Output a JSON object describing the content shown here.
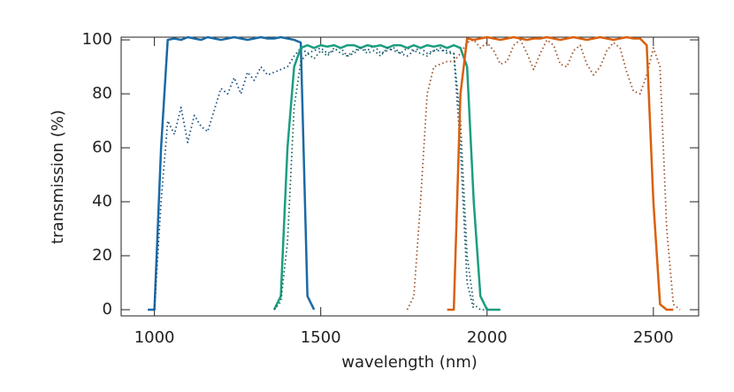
{
  "chart_data": {
    "type": "line",
    "xlabel": "wavelength (nm)",
    "ylabel": "transmission (%)",
    "xlim": [
      900,
      2636
    ],
    "ylim": [
      -2.3,
      101
    ],
    "xticks": [
      1000,
      1500,
      2000,
      2500
    ],
    "yticks": [
      0,
      20,
      40,
      60,
      80,
      100
    ],
    "x": [
      960,
      980,
      1000,
      1020,
      1040,
      1060,
      1080,
      1100,
      1120,
      1140,
      1160,
      1180,
      1200,
      1220,
      1240,
      1260,
      1280,
      1300,
      1320,
      1340,
      1360,
      1380,
      1400,
      1420,
      1440,
      1460,
      1480,
      1500,
      1520,
      1540,
      1560,
      1580,
      1600,
      1620,
      1640,
      1660,
      1680,
      1700,
      1720,
      1740,
      1760,
      1780,
      1800,
      1820,
      1840,
      1860,
      1880,
      1900,
      1920,
      1940,
      1960,
      1980,
      2000,
      2020,
      2040,
      2060,
      2080,
      2100,
      2120,
      2140,
      2160,
      2180,
      2200,
      2220,
      2240,
      2260,
      2280,
      2300,
      2320,
      2340,
      2360,
      2380,
      2400,
      2420,
      2440,
      2460,
      2480,
      2500,
      2520,
      2540,
      2560,
      2580,
      2600
    ],
    "series": [
      {
        "color": "#1b6aa5",
        "dash": "solid",
        "values": [
          null,
          0,
          0,
          60,
          100,
          100.5,
          100,
          101,
          100.5,
          100,
          101,
          100.5,
          100,
          100.5,
          101,
          100.5,
          100,
          100.5,
          101,
          100.5,
          100.5,
          101,
          100.5,
          100,
          99,
          5,
          0,
          null,
          null,
          null,
          null,
          null,
          null,
          null,
          null,
          null,
          null,
          null,
          null,
          null,
          null,
          null,
          null,
          null,
          null,
          null,
          null,
          null,
          null,
          null,
          null,
          null,
          null,
          null,
          null,
          null,
          null,
          null,
          null,
          null,
          null,
          null,
          null,
          null,
          null,
          null,
          null,
          null,
          null,
          null,
          null,
          null,
          null,
          null,
          null,
          null,
          null,
          null,
          null,
          null,
          null,
          null,
          null
        ]
      },
      {
        "color": "#1a4f80",
        "dash": "dotted",
        "values": [
          null,
          null,
          0,
          40,
          70,
          65,
          75,
          62,
          72,
          68,
          66,
          74,
          82,
          80,
          86,
          80,
          88,
          85,
          90,
          87,
          88,
          89,
          90,
          94,
          97,
          95,
          96,
          97,
          95,
          96,
          97,
          94,
          95,
          97,
          96,
          98,
          95,
          96,
          97,
          95,
          94,
          96,
          97,
          95,
          96,
          96,
          96,
          95,
          60,
          10,
          0,
          null,
          null,
          null,
          null,
          null,
          null,
          null,
          null,
          null,
          null,
          null,
          null,
          null,
          null,
          null,
          null,
          null,
          null,
          null,
          null,
          null,
          null,
          null,
          null,
          null,
          null,
          null,
          null,
          null,
          null,
          null,
          null
        ]
      },
      {
        "color": "#1b9e80",
        "dash": "solid",
        "values": [
          null,
          null,
          null,
          null,
          null,
          null,
          null,
          null,
          null,
          null,
          null,
          null,
          null,
          null,
          null,
          null,
          null,
          null,
          null,
          null,
          0,
          5,
          60,
          90,
          97,
          98,
          97,
          98,
          97.5,
          98,
          97,
          98,
          98,
          97,
          98,
          97.5,
          98,
          97,
          98,
          98,
          97,
          98,
          97,
          98,
          97.5,
          98,
          97,
          98,
          97,
          90,
          40,
          5,
          0,
          0,
          0,
          null,
          null,
          null,
          null,
          null,
          null,
          null,
          null,
          null,
          null,
          null,
          null,
          null,
          null,
          null,
          null,
          null,
          null,
          null,
          null,
          null,
          null,
          null,
          null,
          null,
          null,
          null,
          null
        ]
      },
      {
        "color": "#17665a",
        "dash": "dotted",
        "values": [
          null,
          null,
          null,
          null,
          null,
          null,
          null,
          null,
          null,
          null,
          null,
          null,
          null,
          null,
          null,
          null,
          null,
          null,
          null,
          null,
          0,
          3,
          25,
          75,
          92,
          95,
          93,
          96,
          94,
          97,
          95,
          94,
          96,
          97,
          95,
          96,
          94,
          97,
          96,
          95,
          97,
          96,
          95,
          94,
          96,
          97,
          95,
          95,
          70,
          20,
          2,
          0,
          0,
          null,
          null,
          null,
          null,
          null,
          null,
          null,
          null,
          null,
          null,
          null,
          null,
          null,
          null,
          null,
          null,
          null,
          null,
          null,
          null,
          null,
          null,
          null,
          null,
          null,
          null,
          null,
          null,
          null,
          null
        ]
      },
      {
        "color": "#a0542a",
        "dash": "dotted",
        "values": [
          null,
          null,
          null,
          null,
          null,
          null,
          null,
          null,
          null,
          null,
          null,
          null,
          null,
          null,
          null,
          null,
          null,
          null,
          null,
          null,
          null,
          null,
          null,
          null,
          null,
          null,
          null,
          null,
          null,
          null,
          null,
          null,
          null,
          null,
          null,
          null,
          null,
          null,
          null,
          null,
          0,
          5,
          40,
          80,
          90,
          91,
          92,
          92,
          95,
          99,
          100,
          97,
          99,
          96,
          91,
          92,
          98,
          100,
          95,
          89,
          95,
          100,
          98,
          91,
          90,
          96,
          98,
          91,
          87,
          90,
          96,
          99,
          97,
          88,
          81,
          80,
          87,
          97,
          90,
          30,
          2,
          0,
          null
        ]
      },
      {
        "color": "#d9600e",
        "dash": "solid",
        "values": [
          null,
          null,
          null,
          null,
          null,
          null,
          null,
          null,
          null,
          null,
          null,
          null,
          null,
          null,
          null,
          null,
          null,
          null,
          null,
          null,
          null,
          null,
          null,
          null,
          null,
          null,
          null,
          null,
          null,
          null,
          null,
          null,
          null,
          null,
          null,
          null,
          null,
          null,
          null,
          null,
          null,
          null,
          null,
          null,
          null,
          null,
          0,
          0,
          80,
          100.5,
          100,
          100.5,
          101,
          100.5,
          100,
          100.5,
          101,
          100.5,
          100,
          100.5,
          100.5,
          101,
          100.5,
          100,
          100.5,
          101,
          100.5,
          100,
          100.5,
          101,
          100.5,
          100,
          100.5,
          101,
          100.5,
          100.5,
          98,
          40,
          2,
          0,
          0,
          null,
          null
        ]
      }
    ]
  }
}
